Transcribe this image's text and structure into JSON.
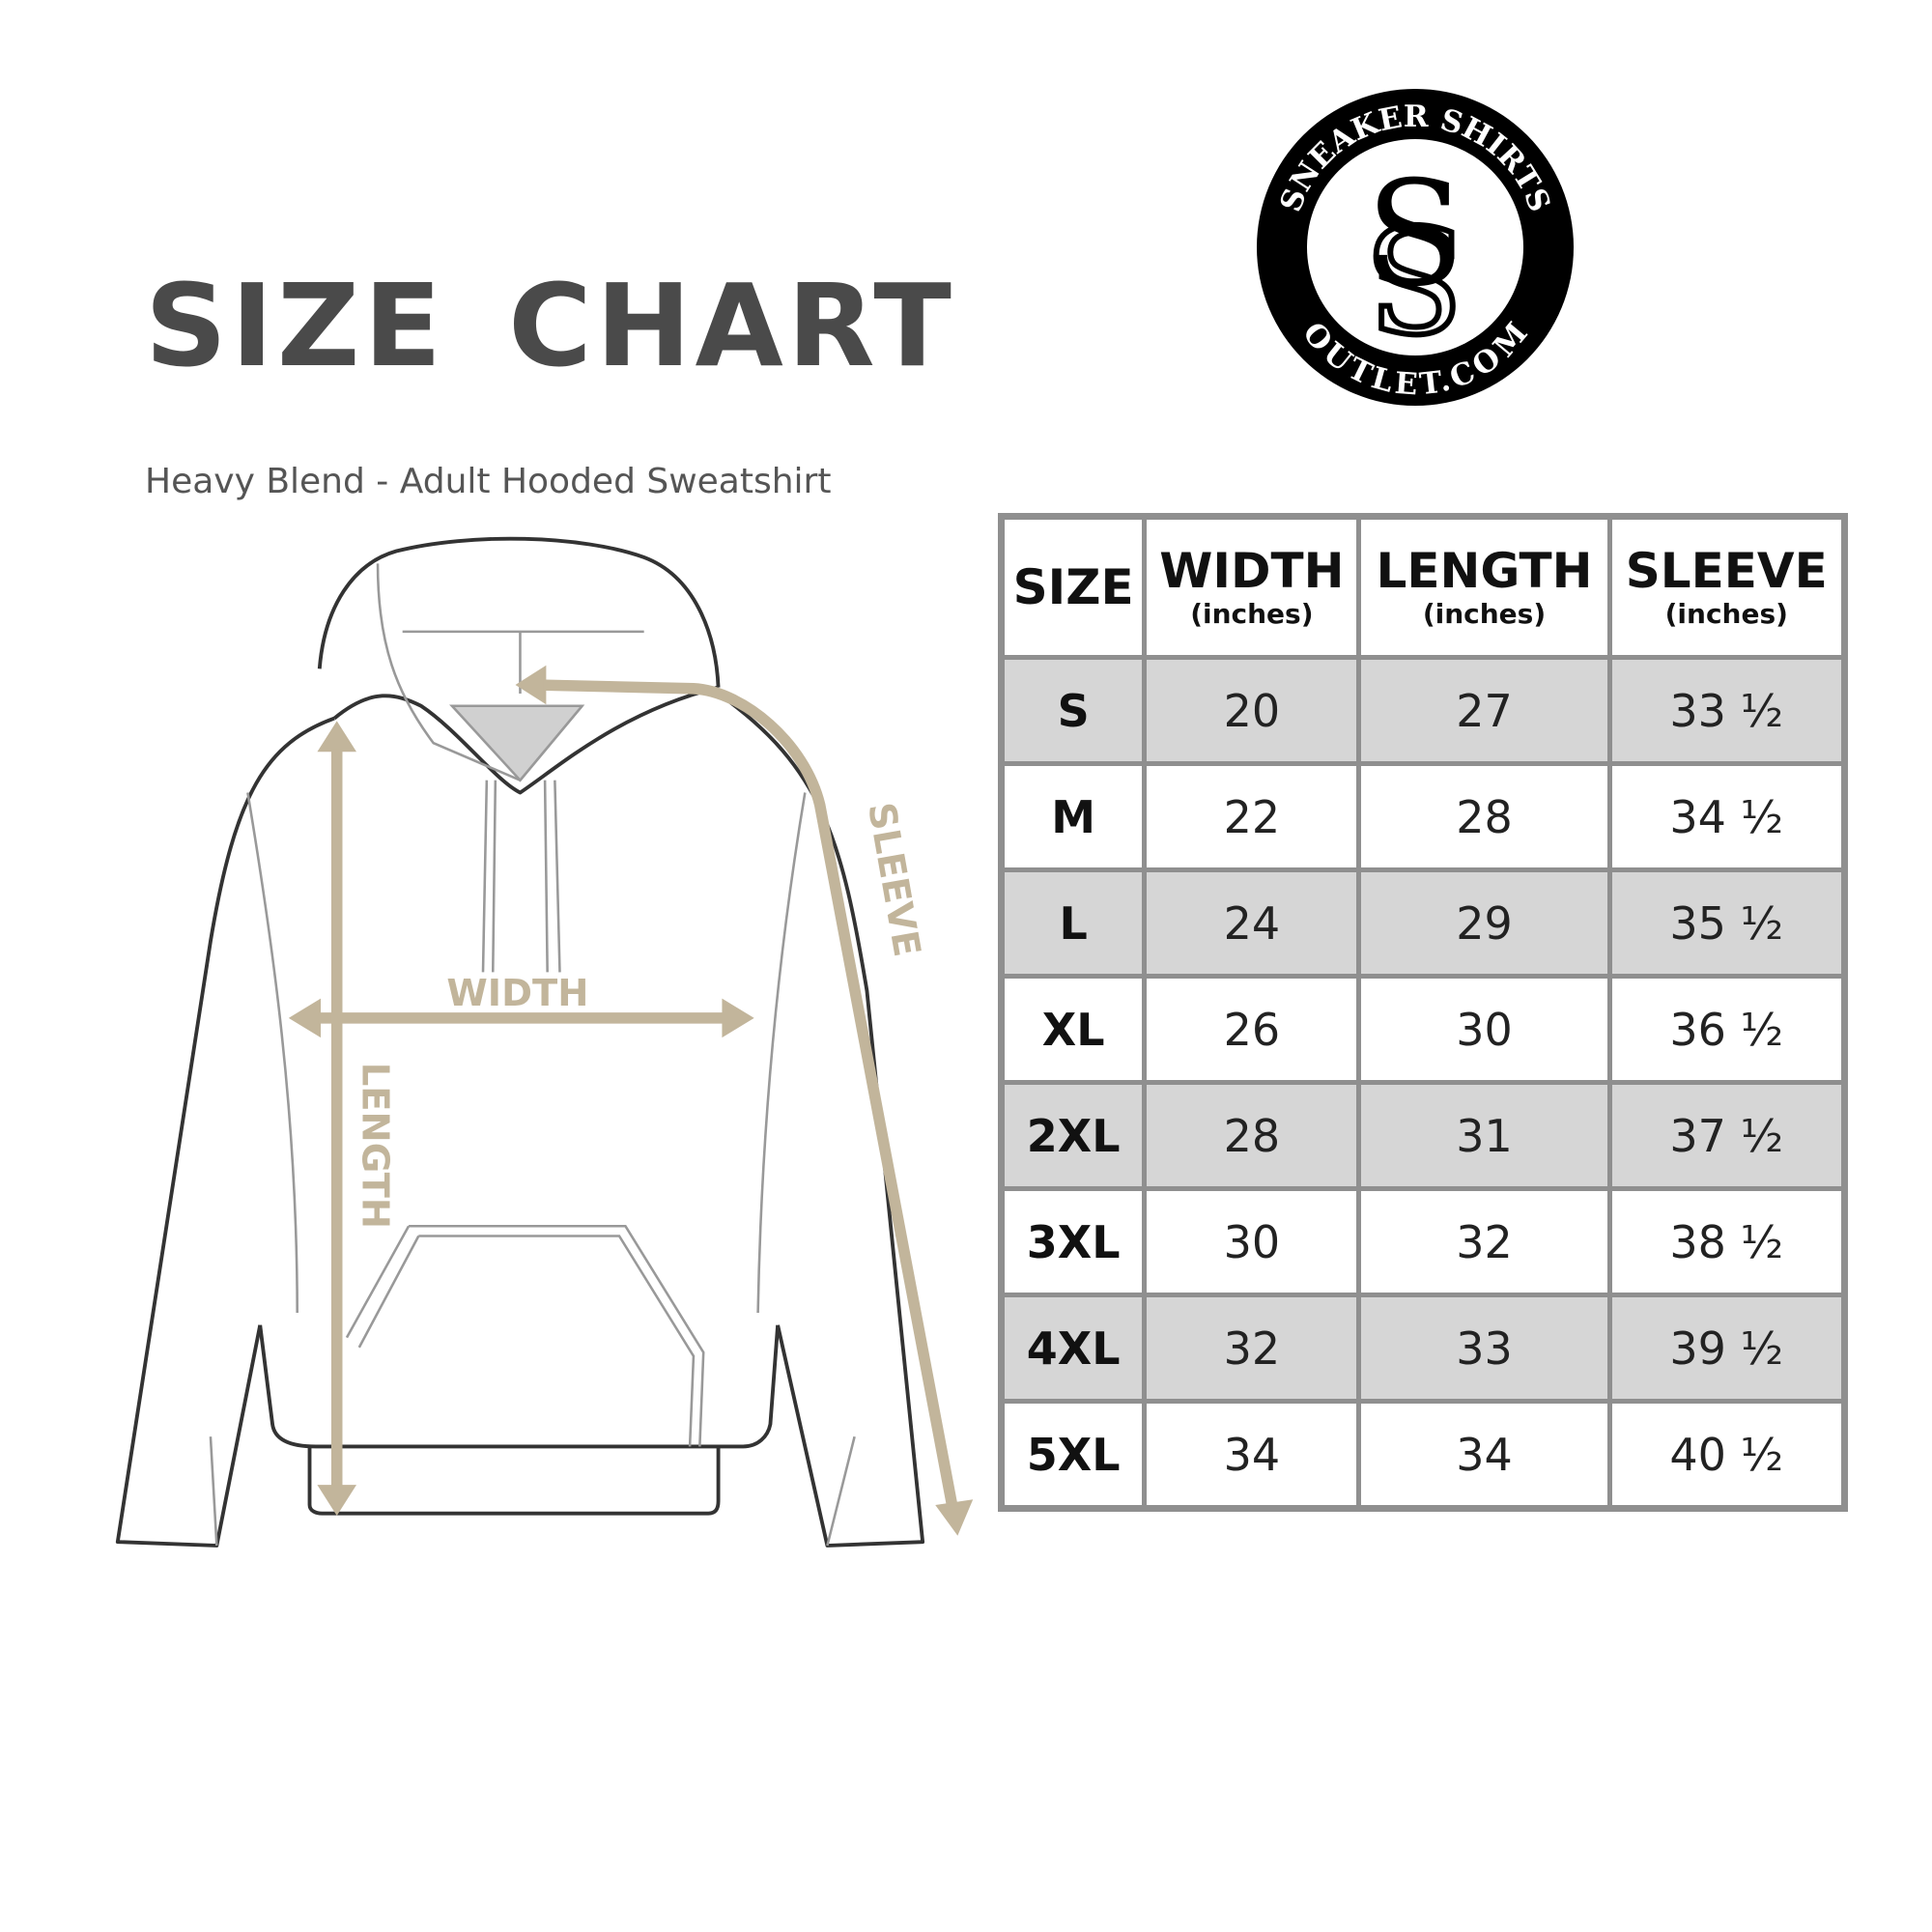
{
  "title": "SIZE CHART",
  "subtitle": "Heavy Blend - Adult Hooded Sweatshirt",
  "logo": {
    "top_text": "SNEAKER SHIRTS",
    "bottom_text": "OUTLET.COM",
    "monogram": "SS"
  },
  "diagram": {
    "width_label": "WIDTH",
    "length_label": "LENGTH",
    "sleeve_label": "SLEEVE",
    "arrow_color": "#c2b59b"
  },
  "table": {
    "headers": [
      {
        "label": "SIZE",
        "unit": ""
      },
      {
        "label": "WIDTH",
        "unit": "(inches)"
      },
      {
        "label": "LENGTH",
        "unit": "(inches)"
      },
      {
        "label": "SLEEVE",
        "unit": "(inches)"
      }
    ],
    "rows": [
      [
        "S",
        "20",
        "27",
        "33 ½"
      ],
      [
        "M",
        "22",
        "28",
        "34 ½"
      ],
      [
        "L",
        "24",
        "29",
        "35 ½"
      ],
      [
        "XL",
        "26",
        "30",
        "36 ½"
      ],
      [
        "2XL",
        "28",
        "31",
        "37 ½"
      ],
      [
        "3XL",
        "30",
        "32",
        "38 ½"
      ],
      [
        "4XL",
        "32",
        "33",
        "39 ½"
      ],
      [
        "5XL",
        "34",
        "34",
        "40 ½"
      ]
    ],
    "shaded_row_color": "#d6d6d6"
  }
}
